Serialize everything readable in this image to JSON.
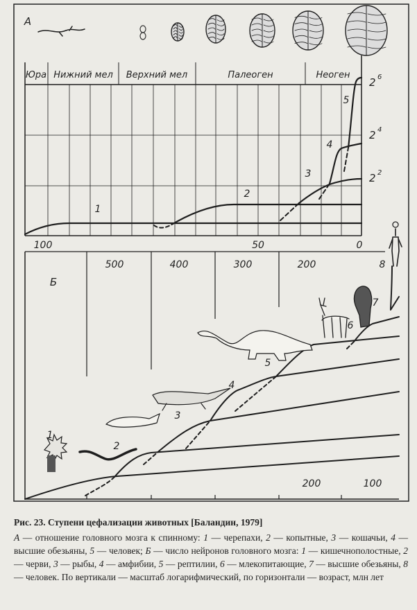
{
  "panel_a": {
    "label": "А",
    "periods": [
      "Юра",
      "Нижний мел",
      "Верхний мел",
      "Палеоген",
      "Неоген"
    ],
    "x_ticks": [
      "100",
      "50",
      "0"
    ],
    "y_ticks": [
      {
        "base": "2",
        "exp": "6"
      },
      {
        "base": "2",
        "exp": "4"
      },
      {
        "base": "2",
        "exp": "2"
      }
    ],
    "curve_labels": [
      "1",
      "2",
      "3",
      "4",
      "5"
    ]
  },
  "panel_b": {
    "label": "Б",
    "top_ticks": [
      "500",
      "400",
      "300",
      "200"
    ],
    "bottom_ticks": [
      "200",
      "100"
    ],
    "curve_labels": [
      "1",
      "2",
      "3",
      "4",
      "5",
      "6",
      "7",
      "8"
    ]
  },
  "caption": {
    "title": "Рис. 23. Ступени цефализации животных [Баландин, 1979]",
    "a_label": "А",
    "a_text": "— отношение головного мозга к спинному:",
    "a_items": [
      {
        "n": "1",
        "t": "— черепахи,"
      },
      {
        "n": "2",
        "t": "— копытные,"
      },
      {
        "n": "3",
        "t": "— кошачьи,"
      },
      {
        "n": "4",
        "t": "— высшие обезьяны,"
      },
      {
        "n": "5",
        "t": "— человек;"
      }
    ],
    "b_label": "Б",
    "b_text": "— число нейронов головного мозга:",
    "b_items": [
      {
        "n": "1",
        "t": "— кишечнополостные,"
      },
      {
        "n": "2",
        "t": "— черви,"
      },
      {
        "n": "3",
        "t": "— рыбы,"
      },
      {
        "n": "4",
        "t": "— амфибии,"
      },
      {
        "n": "5",
        "t": "— рептилии,"
      },
      {
        "n": "6",
        "t": "— млекопитающие,"
      },
      {
        "n": "7",
        "t": "— высшие обезьяны,"
      },
      {
        "n": "8",
        "t": "— человек."
      }
    ],
    "note": "По вертикали — масштаб логарифмический, по горизонтали — возраст, млн лет"
  }
}
